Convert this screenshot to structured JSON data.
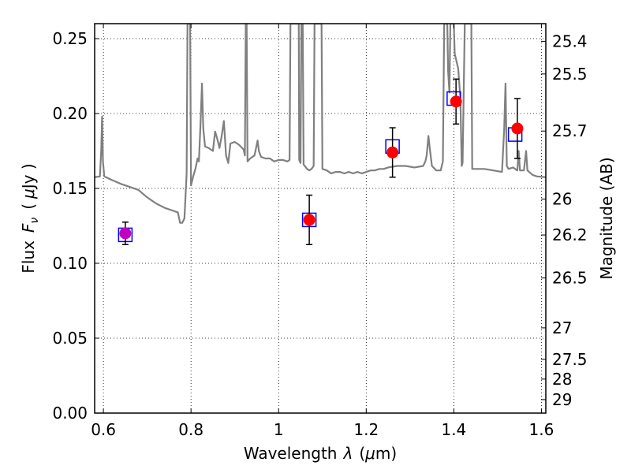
{
  "chart_data": {
    "type": "scatter",
    "xlabel": "Wavelength",
    "xlabel_symbol": "λ",
    "xlabel_unit_open": "(",
    "xlabel_unit_mu": "μ",
    "xlabel_unit_rest": "m)",
    "ylabel": "Flux",
    "ylabel_symbol": "F",
    "ylabel_subscript": "ν",
    "ylabel_unit_open": "(",
    "ylabel_unit_mu": "μ",
    "ylabel_unit_rest": "Jy )",
    "y2label": "Magnitude (AB)",
    "xlim": [
      0.58,
      1.61
    ],
    "ylim": [
      0.0,
      0.26
    ],
    "grid": true,
    "x_ticks": [
      {
        "value": 0.6,
        "label": "0.6"
      },
      {
        "value": 0.8,
        "label": "0.8"
      },
      {
        "value": 1.0,
        "label": "1"
      },
      {
        "value": 1.2,
        "label": "1.2"
      },
      {
        "value": 1.4,
        "label": "1.4"
      },
      {
        "value": 1.6,
        "label": "1.6"
      }
    ],
    "y_ticks": [
      {
        "value": 0.0,
        "label": "0.00"
      },
      {
        "value": 0.05,
        "label": "0.05"
      },
      {
        "value": 0.1,
        "label": "0.10"
      },
      {
        "value": 0.15,
        "label": "0.15"
      },
      {
        "value": 0.2,
        "label": "0.20"
      },
      {
        "value": 0.25,
        "label": "0.25"
      }
    ],
    "y2_ticks": [
      {
        "label": "25.4",
        "flux": 0.2482
      },
      {
        "label": "25.5",
        "flux": 0.2264
      },
      {
        "label": "25.7",
        "flux": 0.1883
      },
      {
        "label": "26",
        "flux": 0.1429
      },
      {
        "label": "26.2",
        "flux": 0.1189
      },
      {
        "label": "26.5",
        "flux": 0.0902
      },
      {
        "label": "27",
        "flux": 0.0569
      },
      {
        "label": "27.5",
        "flux": 0.0359
      },
      {
        "label": "28",
        "flux": 0.0227
      },
      {
        "label": "29",
        "flux": 0.009
      }
    ],
    "series": [
      {
        "kind": "model_spectrum",
        "color": "#808080",
        "points": [
          [
            0.58,
            0.1575
          ],
          [
            0.592,
            0.158
          ],
          [
            0.595,
            0.175
          ],
          [
            0.597,
            0.198
          ],
          [
            0.599,
            0.168
          ],
          [
            0.602,
            0.158
          ],
          [
            0.62,
            0.1555
          ],
          [
            0.64,
            0.153
          ],
          [
            0.66,
            0.151
          ],
          [
            0.68,
            0.149
          ],
          [
            0.7,
            0.144
          ],
          [
            0.72,
            0.14
          ],
          [
            0.74,
            0.137
          ],
          [
            0.76,
            0.135
          ],
          [
            0.77,
            0.134
          ],
          [
            0.775,
            0.127
          ],
          [
            0.78,
            0.127
          ],
          [
            0.785,
            0.13
          ],
          [
            0.79,
            0.16
          ],
          [
            0.792,
            0.26
          ],
          [
            0.798,
            0.26
          ],
          [
            0.8,
            0.152
          ],
          [
            0.805,
            0.158
          ],
          [
            0.81,
            0.163
          ],
          [
            0.815,
            0.17
          ],
          [
            0.818,
            0.168
          ],
          [
            0.822,
            0.195
          ],
          [
            0.825,
            0.22
          ],
          [
            0.828,
            0.19
          ],
          [
            0.832,
            0.178
          ],
          [
            0.84,
            0.177
          ],
          [
            0.85,
            0.175
          ],
          [
            0.855,
            0.188
          ],
          [
            0.86,
            0.183
          ],
          [
            0.865,
            0.177
          ],
          [
            0.87,
            0.185
          ],
          [
            0.875,
            0.195
          ],
          [
            0.88,
            0.172
          ],
          [
            0.885,
            0.167
          ],
          [
            0.89,
            0.18
          ],
          [
            0.9,
            0.181
          ],
          [
            0.91,
            0.179
          ],
          [
            0.92,
            0.176
          ],
          [
            0.923,
            0.172
          ],
          [
            0.925,
            0.26
          ],
          [
            0.927,
            0.26
          ],
          [
            0.929,
            0.168
          ],
          [
            0.935,
            0.17
          ],
          [
            0.945,
            0.172
          ],
          [
            0.952,
            0.182
          ],
          [
            0.955,
            0.175
          ],
          [
            0.96,
            0.171
          ],
          [
            0.97,
            0.17
          ],
          [
            0.98,
            0.17
          ],
          [
            0.99,
            0.168
          ],
          [
            1.0,
            0.169
          ],
          [
            1.01,
            0.169
          ],
          [
            1.02,
            0.168
          ],
          [
            1.025,
            0.169
          ],
          [
            1.027,
            0.26
          ],
          [
            1.046,
            0.26
          ],
          [
            1.047,
            0.169
          ],
          [
            1.05,
            0.167
          ],
          [
            1.052,
            0.26
          ],
          [
            1.055,
            0.26
          ],
          [
            1.057,
            0.166
          ],
          [
            1.065,
            0.163
          ],
          [
            1.07,
            0.162
          ],
          [
            1.075,
            0.163
          ],
          [
            1.08,
            0.165
          ],
          [
            1.082,
            0.26
          ],
          [
            1.098,
            0.26
          ],
          [
            1.1,
            0.163
          ],
          [
            1.11,
            0.162
          ],
          [
            1.12,
            0.16
          ],
          [
            1.13,
            0.161
          ],
          [
            1.14,
            0.161
          ],
          [
            1.15,
            0.16
          ],
          [
            1.16,
            0.161
          ],
          [
            1.17,
            0.16
          ],
          [
            1.18,
            0.161
          ],
          [
            1.19,
            0.16
          ],
          [
            1.2,
            0.161
          ],
          [
            1.21,
            0.162
          ],
          [
            1.22,
            0.162
          ],
          [
            1.23,
            0.163
          ],
          [
            1.24,
            0.163
          ],
          [
            1.25,
            0.164
          ],
          [
            1.27,
            0.165
          ],
          [
            1.29,
            0.165
          ],
          [
            1.31,
            0.164
          ],
          [
            1.33,
            0.165
          ],
          [
            1.335,
            0.168
          ],
          [
            1.338,
            0.172
          ],
          [
            1.342,
            0.185
          ],
          [
            1.345,
            0.177
          ],
          [
            1.35,
            0.165
          ],
          [
            1.36,
            0.162
          ],
          [
            1.37,
            0.162
          ],
          [
            1.375,
            0.168
          ],
          [
            1.378,
            0.26
          ],
          [
            1.385,
            0.26
          ],
          [
            1.387,
            0.228
          ],
          [
            1.39,
            0.214
          ],
          [
            1.392,
            0.26
          ],
          [
            1.4,
            0.26
          ],
          [
            1.402,
            0.24
          ],
          [
            1.41,
            0.23
          ],
          [
            1.415,
            0.21
          ],
          [
            1.418,
            0.165
          ],
          [
            1.42,
            0.167
          ],
          [
            1.425,
            0.26
          ],
          [
            1.44,
            0.26
          ],
          [
            1.442,
            0.163
          ],
          [
            1.45,
            0.163
          ],
          [
            1.47,
            0.163
          ],
          [
            1.49,
            0.162
          ],
          [
            1.51,
            0.161
          ],
          [
            1.515,
            0.19
          ],
          [
            1.518,
            0.22
          ],
          [
            1.521,
            0.165
          ],
          [
            1.525,
            0.163
          ],
          [
            1.535,
            0.164
          ],
          [
            1.545,
            0.162
          ],
          [
            1.548,
            0.175
          ],
          [
            1.551,
            0.162
          ],
          [
            1.56,
            0.162
          ],
          [
            1.565,
            0.175
          ],
          [
            1.568,
            0.162
          ],
          [
            1.58,
            0.159
          ],
          [
            1.59,
            0.158
          ],
          [
            1.61,
            0.1575
          ]
        ]
      },
      {
        "kind": "model_photometry",
        "marker": "open-square",
        "color": "#0000ff",
        "points": [
          [
            0.65,
            0.119
          ],
          [
            1.07,
            0.129
          ],
          [
            1.26,
            0.178
          ],
          [
            1.4,
            0.21
          ],
          [
            1.54,
            0.186
          ]
        ]
      },
      {
        "kind": "observed_photometry",
        "marker": "filled-circle",
        "points": [
          {
            "x": 0.65,
            "y": 0.12,
            "err": 0.0075,
            "color": "#bf00bf"
          },
          {
            "x": 1.07,
            "y": 0.129,
            "err": 0.0165,
            "color": "#ff0000"
          },
          {
            "x": 1.26,
            "y": 0.174,
            "err": 0.0165,
            "color": "#ff0000"
          },
          {
            "x": 1.405,
            "y": 0.208,
            "err": 0.015,
            "color": "#ff0000"
          },
          {
            "x": 1.545,
            "y": 0.19,
            "err": 0.02,
            "color": "#ff0000"
          }
        ]
      }
    ]
  }
}
